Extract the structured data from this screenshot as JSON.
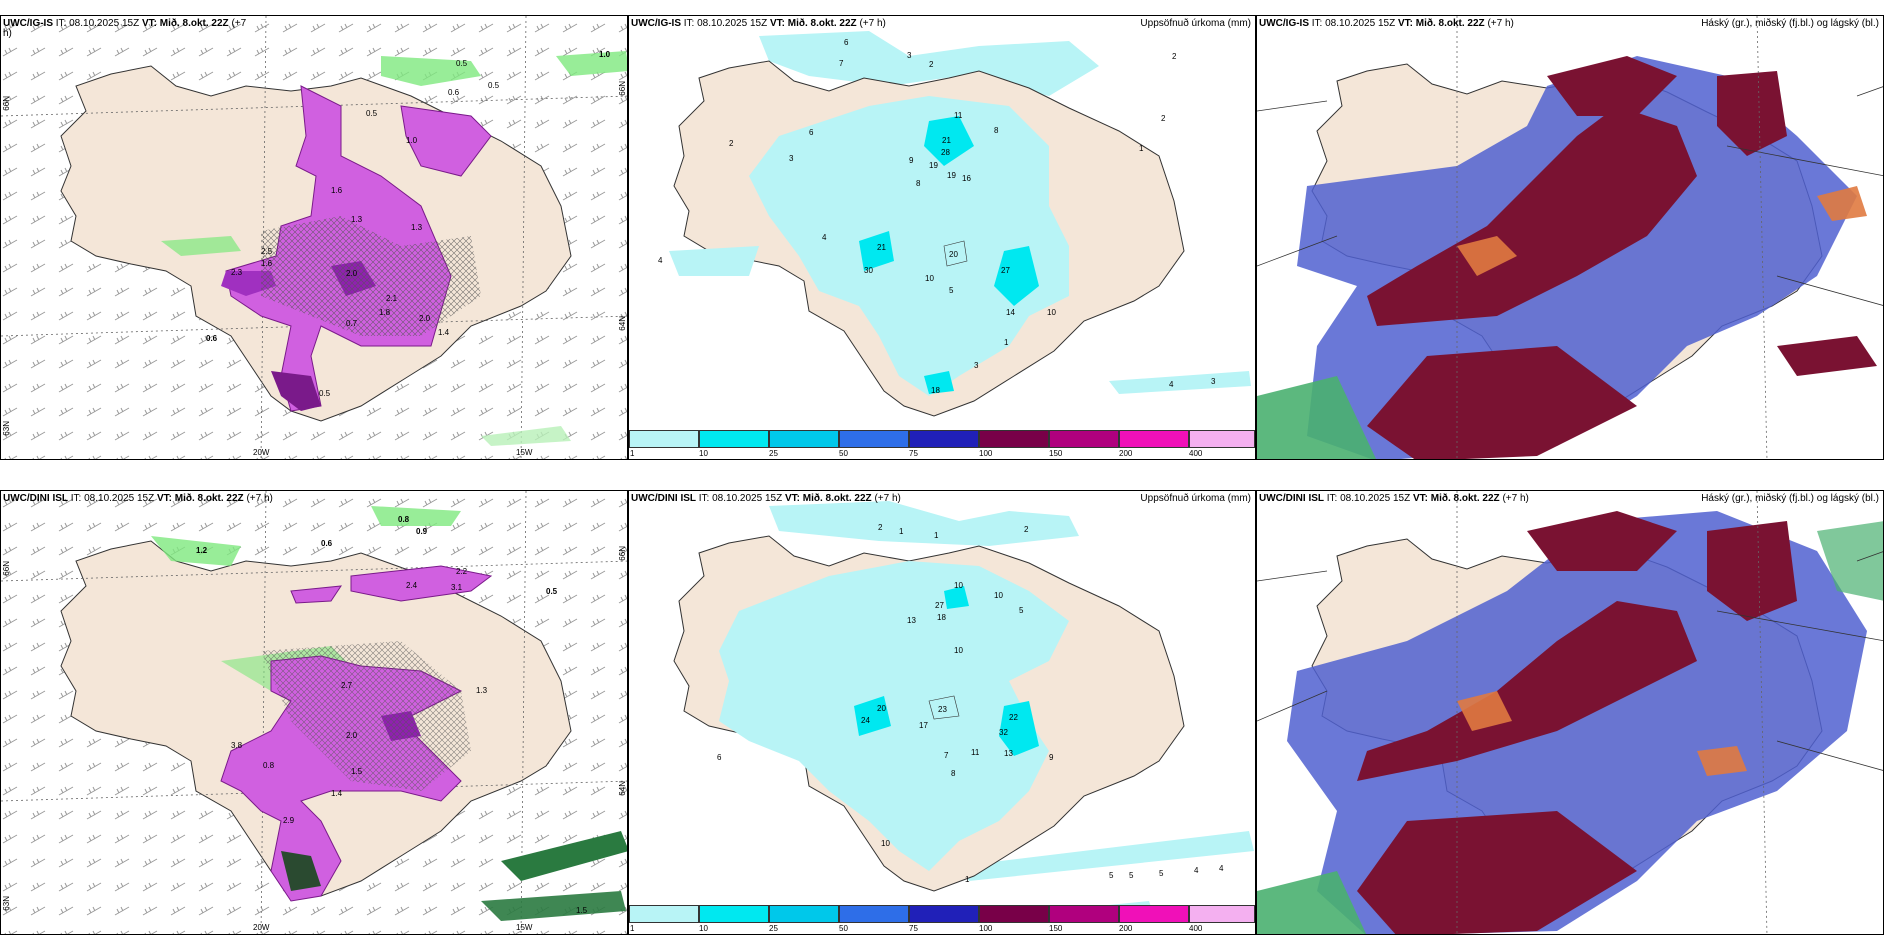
{
  "panels": {
    "p1": {
      "title_model": "UWC/IG-IS",
      "title_it": "IT: 08.10.2025 15Z",
      "title_vt": "VT: Mið. 8.okt. 22Z",
      "title_lead": "(+7",
      "title_lead2": "h)"
    },
    "p2": {
      "title_model": "UWC/IG-IS",
      "title_it": "IT: 08.10.2025 15Z",
      "title_vt": "VT: Mið. 8.okt. 22Z",
      "title_lead": "(+7 h)",
      "title_right": "Uppsöfnuð úrkoma (mm)"
    },
    "p3": {
      "title_model": "UWC/IG-IS",
      "title_it": "IT: 08.10.2025 15Z",
      "title_vt": "VT: Mið. 8.okt. 22Z",
      "title_lead": "(+7 h)",
      "title_right": "Háský (gr.), miðský (fj.bl.) og lágský (bl.)"
    },
    "p4": {
      "title_model": "UWC/DINI ISL",
      "title_it": "IT: 08.10.2025 15Z",
      "title_vt": "VT: Mið. 8.okt. 22Z",
      "title_lead": "(+7 h)"
    },
    "p5": {
      "title_model": "UWC/DINI ISL",
      "title_it": "IT: 08.10.2025 15Z",
      "title_vt": "VT: Mið. 8.okt. 22Z",
      "title_lead": "(+7 h)",
      "title_right": "Uppsöfnuð úrkoma (mm)"
    },
    "p6": {
      "title_model": "UWC/DINI ISL",
      "title_it": "IT: 08.10.2025 15Z",
      "title_vt": "VT: Mið. 8.okt. 22Z",
      "title_lead": "(+7 h)",
      "title_right": "Háský (gr.), miðský (fj.bl.) og lágský (bl.)"
    }
  },
  "axes": {
    "lon_20": "20W",
    "lon_15": "15W",
    "lat_66": "66N",
    "lat_64": "64N",
    "lat_63": "63N"
  },
  "legend": {
    "ticks": [
      "1",
      "10",
      "25",
      "50",
      "75",
      "100",
      "150",
      "200",
      "400"
    ],
    "colors": [
      "#b8f4f6",
      "#00e8f0",
      "#00c8ea",
      "#2e6ee8",
      "#2020b8",
      "#780048",
      "#b0007e",
      "#f010b8",
      "#f4b0f0"
    ]
  },
  "colors": {
    "land": "#f4e6d8",
    "precip_light": "#b8f4f6",
    "precip_mid": "#00e8f0",
    "magenta": "#d060e0",
    "green": "#7ee87e",
    "maroon": "#7a1232",
    "cloud_blue": "#5060d0"
  },
  "p1_values": [
    "0.5",
    "1.0",
    "0.5",
    "0.6",
    "0.5",
    "1.0",
    "1.6",
    "1.3",
    "1.3",
    "2.5",
    "1.6",
    "2.3",
    "2.0",
    "1.8",
    "2.1",
    "2.0",
    "1.4",
    "0.6",
    "0.7",
    "0.5"
  ],
  "p2_values": [
    "6",
    "7",
    "3",
    "2",
    "2",
    "2",
    "3",
    "21",
    "28",
    "19",
    "19",
    "16",
    "9",
    "8",
    "11",
    "8",
    "6",
    "4",
    "4",
    "21",
    "30",
    "20",
    "27",
    "10",
    "14",
    "10",
    "5",
    "3",
    "4",
    "3",
    "18",
    "1",
    "2",
    "1"
  ],
  "p4_values": [
    "0.8",
    "0.9",
    "0.6",
    "1.2",
    "0.5",
    "2.4",
    "3.1",
    "2.2",
    "1.3",
    "2.0",
    "3.8",
    "2.7",
    "1.5",
    "0.8",
    "2.9",
    "1.4",
    "1.5"
  ],
  "p5_values": [
    "2",
    "1",
    "1",
    "2",
    "27",
    "18",
    "10",
    "13",
    "10",
    "5",
    "10",
    "23",
    "24",
    "20",
    "17",
    "22",
    "32",
    "13",
    "7",
    "8",
    "9",
    "6",
    "11",
    "10",
    "5",
    "5",
    "5",
    "4",
    "4",
    "1"
  ]
}
